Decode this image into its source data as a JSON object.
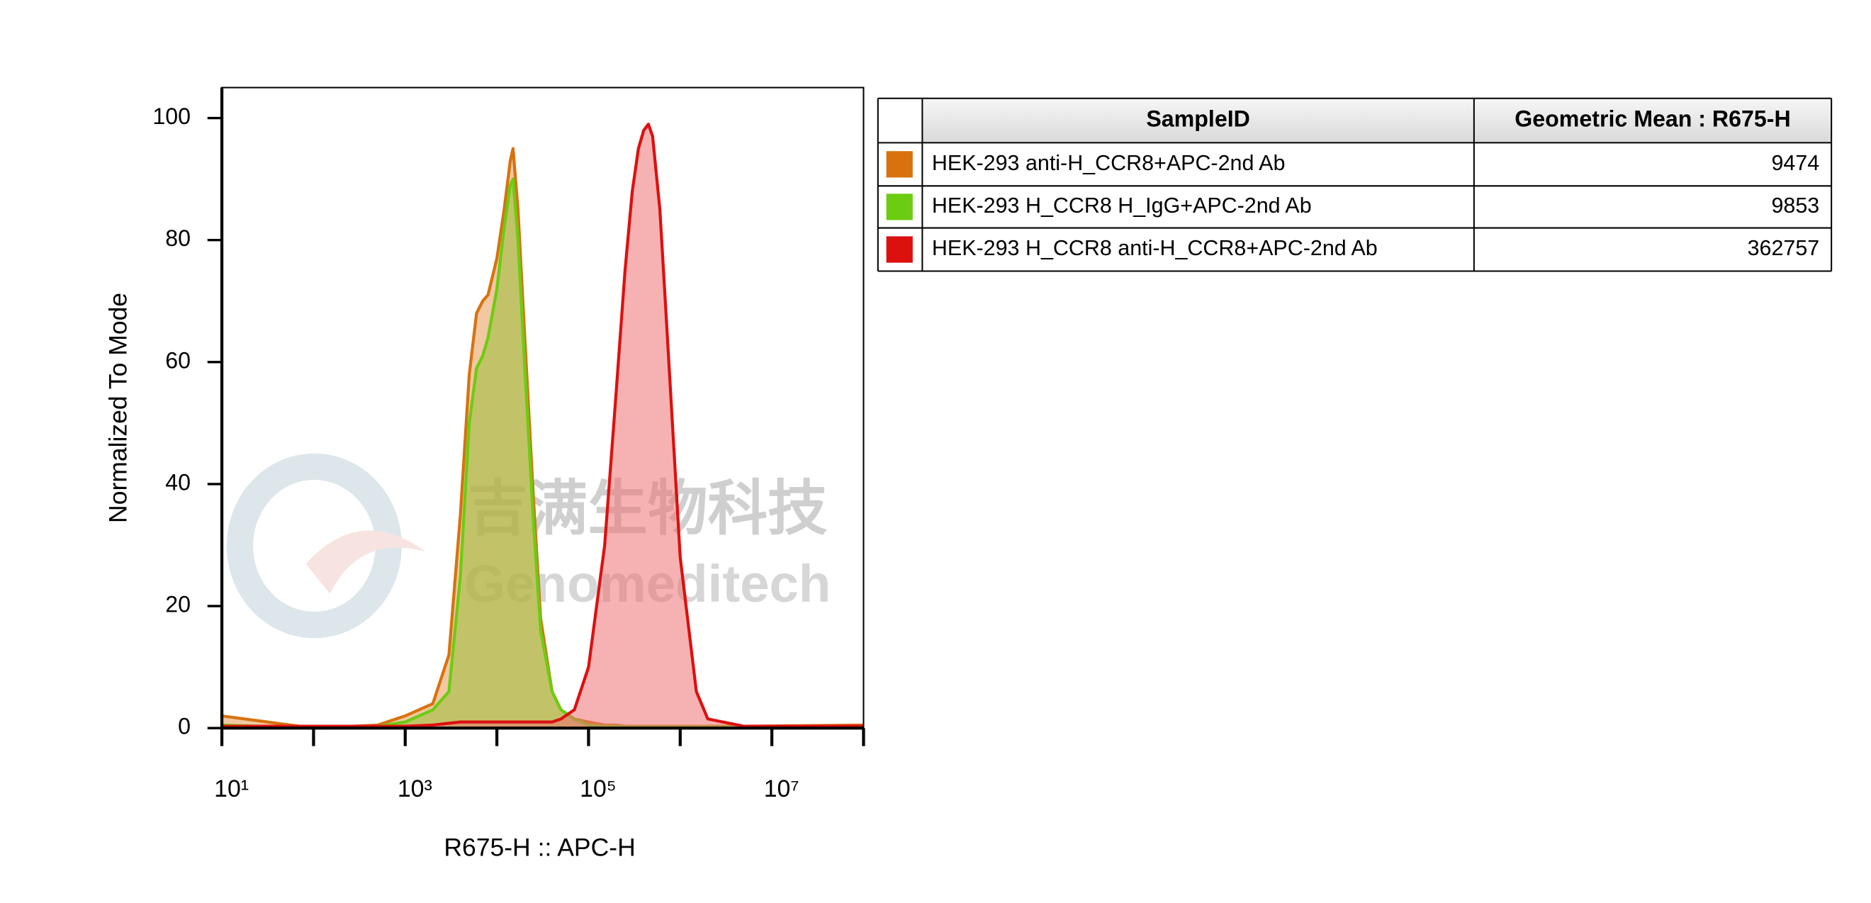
{
  "chart_data": {
    "type": "histogram-overlay",
    "xlabel": "R675-H :: APC-H",
    "ylabel": "Normalized To Mode",
    "xscale": "log",
    "xlim": [
      10,
      100000000
    ],
    "ylim": [
      0,
      105
    ],
    "xticks": [
      {
        "value": 10,
        "label": "10¹"
      },
      {
        "value": 1000,
        "label": "10³"
      },
      {
        "value": 100000,
        "label": "10⁵"
      },
      {
        "value": 10000000,
        "label": "10⁷"
      }
    ],
    "xminorticks": [
      100,
      10000,
      1000000,
      100000000
    ],
    "yticks": [
      0,
      20,
      40,
      60,
      80,
      100
    ],
    "x": [
      10,
      100,
      500,
      1000,
      2000,
      3000,
      4000,
      5000,
      6000,
      7000,
      8000,
      10000,
      12000,
      14000,
      15000,
      17000,
      20000,
      25000,
      30000,
      40000,
      50000,
      70000,
      100000,
      150000,
      200000,
      250000,
      300000,
      350000,
      400000,
      450000,
      500000,
      600000,
      700000,
      1000000,
      1500000,
      2000000,
      5000000,
      100000000
    ],
    "series": [
      {
        "name": "HEK-293 anti-H_CCR8+APC-2nd Ab",
        "color": "#d8720e",
        "fill": "#e59a55",
        "values": [
          2,
          0,
          0.5,
          2,
          4,
          12,
          35,
          58,
          68,
          70,
          71,
          77,
          85,
          93,
          95,
          85,
          65,
          38,
          18,
          6,
          3,
          1.5,
          1,
          0.5,
          0.5,
          0.3,
          0.3,
          0.3,
          0.3,
          0.3,
          0.3,
          0.3,
          0.3,
          0.3,
          0.3,
          0.3,
          0.3,
          0.5
        ]
      },
      {
        "name": "HEK-293 H_CCR8 H_IgG+APC-2nd Ab",
        "color": "#6ccc12",
        "fill": "#9bbf3a",
        "values": [
          0.5,
          0,
          0.3,
          1,
          3,
          6,
          25,
          50,
          59,
          61,
          64,
          72,
          82,
          89,
          90,
          80,
          60,
          34,
          16,
          6,
          3,
          1.5,
          0.5,
          0.3,
          0.3,
          0.2,
          0.2,
          0.2,
          0.2,
          0.2,
          0.2,
          0.2,
          0.2,
          0.2,
          0.2,
          0.2,
          0.2,
          0.2
        ]
      },
      {
        "name": "HEK-293 H_CCR8 anti-H_CCR8+APC-2nd Ab",
        "color": "#dd1010",
        "fill": "#ee7272",
        "values": [
          0.3,
          0.3,
          0.3,
          0.3,
          0.5,
          0.8,
          1,
          1,
          1,
          1,
          1,
          1,
          1,
          1,
          1,
          1,
          1,
          1,
          1,
          1,
          1.5,
          3,
          10,
          30,
          55,
          75,
          88,
          95,
          98,
          99,
          97,
          85,
          68,
          28,
          6,
          1.5,
          0.3,
          0.3
        ]
      }
    ],
    "table": {
      "columns": [
        "SampleID",
        "Geometric Mean : R675-H"
      ],
      "geometric_means": [
        9474,
        9853,
        362757
      ]
    },
    "watermark": {
      "text_cn": "吉满生物科技",
      "text_en": "Genomeditech"
    }
  }
}
